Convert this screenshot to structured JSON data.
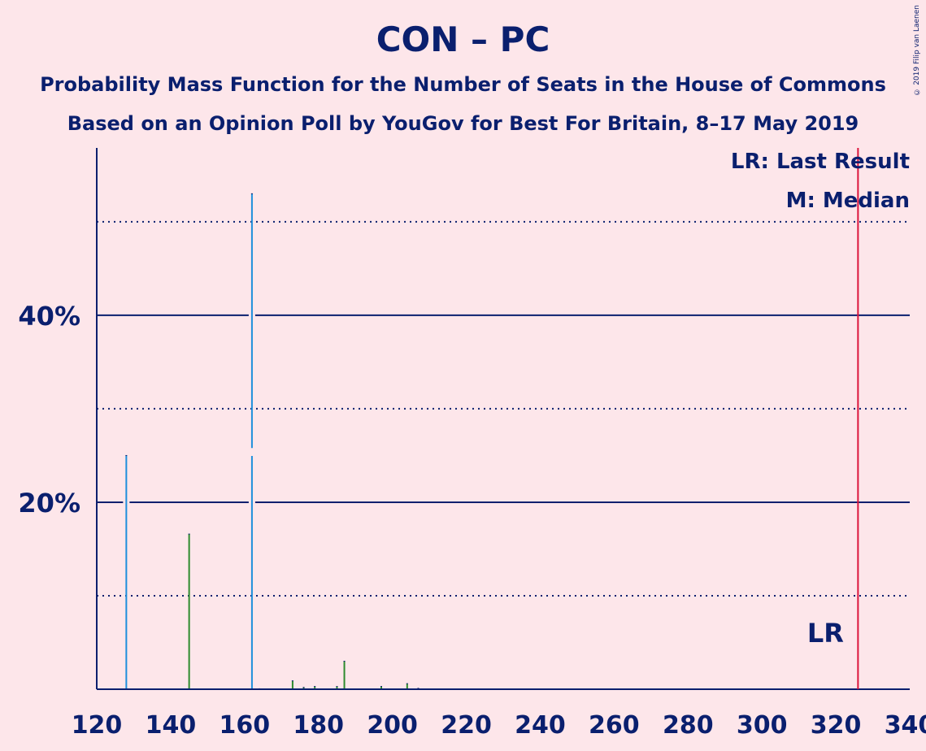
{
  "chart_data": {
    "type": "bar",
    "title": "CON – PC",
    "subtitle": "Probability Mass Function for the Number of Seats in the House of Commons",
    "subtitle2": "Based on an Opinion Poll by YouGov for Best For Britain, 8–17 May 2019",
    "copyright": "© 2019 Filip van Laenen",
    "legend": {
      "last_result": "LR: Last Result",
      "median": "M: Median",
      "placement": "top-right"
    },
    "xlim": [
      120,
      340
    ],
    "ylim": [
      0,
      58
    ],
    "xticks": [
      120,
      140,
      160,
      180,
      200,
      220,
      240,
      260,
      280,
      300,
      320,
      340
    ],
    "yticks": [
      {
        "value": 20,
        "label": "20%"
      },
      {
        "value": 40,
        "label": "40%"
      }
    ],
    "dotted_gridlines": [
      10,
      30,
      50
    ],
    "last_result": {
      "x": 326,
      "label": "LR"
    },
    "median_x": 162,
    "colors": {
      "background": "#fde6ea",
      "text": "#0a1f6e",
      "bar_blue": "#1e8fdc",
      "bar_green": "#2e8b2e",
      "last_result_line": "#dc143c"
    },
    "bars": [
      {
        "x": 128,
        "y": 25.0,
        "color": "blue"
      },
      {
        "x": 145,
        "y": 16.6,
        "color": "green"
      },
      {
        "x": 162,
        "y": 53.0,
        "color": "blue"
      },
      {
        "x": 164,
        "y": 0.05,
        "color": "blue"
      },
      {
        "x": 173,
        "y": 0.9,
        "color": "green"
      },
      {
        "x": 176,
        "y": 0.2,
        "color": "green"
      },
      {
        "x": 179,
        "y": 0.3,
        "color": "green"
      },
      {
        "x": 185,
        "y": 0.3,
        "color": "green"
      },
      {
        "x": 187,
        "y": 3.0,
        "color": "green"
      },
      {
        "x": 197,
        "y": 0.3,
        "color": "green"
      },
      {
        "x": 204,
        "y": 0.6,
        "color": "green"
      },
      {
        "x": 207,
        "y": 0.1,
        "color": "green"
      }
    ]
  }
}
